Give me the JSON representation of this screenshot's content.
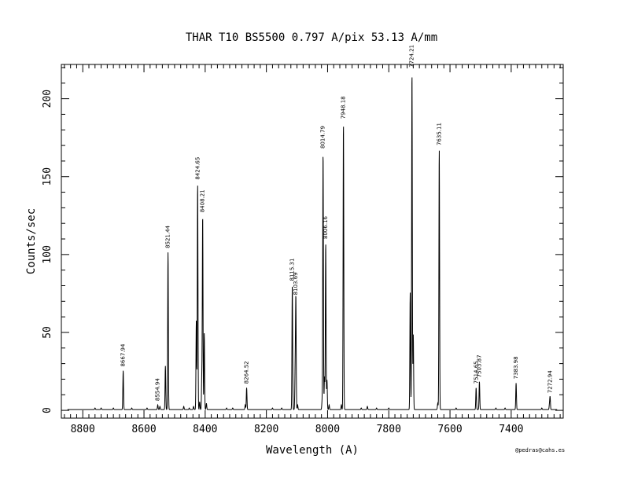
{
  "chart_data": {
    "type": "line",
    "title": "THAR  T10  BS5500  0.797 A/pix  53.13 A/mm",
    "xlabel": "Wavelength (A)",
    "ylabel": "Counts/sec",
    "xlim": [
      8870,
      7230
    ],
    "ylim": [
      -5,
      222
    ],
    "x_ticks": [
      8800,
      8600,
      8400,
      8200,
      8000,
      7800,
      7600,
      7400
    ],
    "x_tick_labels": [
      "8800",
      "8600",
      "8400",
      "8200",
      "8000",
      "7800",
      "7600",
      "7400"
    ],
    "y_ticks": [
      0,
      50,
      100,
      150,
      200
    ],
    "y_tick_labels": [
      "0",
      "50",
      "100",
      "150",
      "200"
    ],
    "grid": false,
    "baseline": 0.5,
    "peaks": [
      {
        "x": 8667.94,
        "y": 25,
        "label": "8667.94"
      },
      {
        "x": 8554.94,
        "y": 3,
        "label": "8554.94"
      },
      {
        "x": 8521.44,
        "y": 101,
        "label": "8521.44"
      },
      {
        "x": 8424.65,
        "y": 145,
        "label": "8424.65"
      },
      {
        "x": 8408.21,
        "y": 124,
        "label": "8408.21"
      },
      {
        "x": 8264.52,
        "y": 14,
        "label": "8264.52"
      },
      {
        "x": 8115.31,
        "y": 80,
        "label": "8115.31"
      },
      {
        "x": 8103.69,
        "y": 71,
        "label": "8103.69"
      },
      {
        "x": 8014.79,
        "y": 165,
        "label": "8014.79"
      },
      {
        "x": 8006.16,
        "y": 107,
        "label": "8006.16"
      },
      {
        "x": 7948.18,
        "y": 184,
        "label": "7948.18"
      },
      {
        "x": 7724.21,
        "y": 217,
        "label": "7724.21"
      },
      {
        "x": 7635.11,
        "y": 167,
        "label": "7635.11"
      },
      {
        "x": 7514.65,
        "y": 14,
        "label": "7514.65"
      },
      {
        "x": 7503.87,
        "y": 18,
        "label": "7503.87"
      },
      {
        "x": 7383.98,
        "y": 17,
        "label": "7383.98"
      },
      {
        "x": 7272.94,
        "y": 8,
        "label": "7272.94"
      }
    ],
    "minor_peaks": [
      {
        "x": 8760,
        "y": 1
      },
      {
        "x": 8740,
        "y": 1
      },
      {
        "x": 8700,
        "y": 1
      },
      {
        "x": 8640,
        "y": 1
      },
      {
        "x": 8590,
        "y": 1
      },
      {
        "x": 8548,
        "y": 2
      },
      {
        "x": 8530,
        "y": 28
      },
      {
        "x": 8470,
        "y": 2
      },
      {
        "x": 8452,
        "y": 1
      },
      {
        "x": 8438,
        "y": 2
      },
      {
        "x": 8429,
        "y": 57
      },
      {
        "x": 8418,
        "y": 5
      },
      {
        "x": 8411,
        "y": 20
      },
      {
        "x": 8403,
        "y": 49
      },
      {
        "x": 8396,
        "y": 4
      },
      {
        "x": 8330,
        "y": 1
      },
      {
        "x": 8310,
        "y": 1
      },
      {
        "x": 8269,
        "y": 3
      },
      {
        "x": 8180,
        "y": 1
      },
      {
        "x": 8150,
        "y": 1
      },
      {
        "x": 8106,
        "y": 24
      },
      {
        "x": 8098,
        "y": 3
      },
      {
        "x": 8018,
        "y": 5
      },
      {
        "x": 8010,
        "y": 21
      },
      {
        "x": 8002,
        "y": 19
      },
      {
        "x": 7995,
        "y": 3
      },
      {
        "x": 7955,
        "y": 3
      },
      {
        "x": 7890,
        "y": 1
      },
      {
        "x": 7870,
        "y": 2
      },
      {
        "x": 7840,
        "y": 1
      },
      {
        "x": 7800,
        "y": 1
      },
      {
        "x": 7730,
        "y": 75
      },
      {
        "x": 7720,
        "y": 48
      },
      {
        "x": 7640,
        "y": 4
      },
      {
        "x": 7580,
        "y": 1
      },
      {
        "x": 7450,
        "y": 1
      },
      {
        "x": 7420,
        "y": 1
      },
      {
        "x": 7300,
        "y": 1
      },
      {
        "x": 7275,
        "y": 3
      }
    ],
    "credit": "@pedras@cahs.es"
  }
}
